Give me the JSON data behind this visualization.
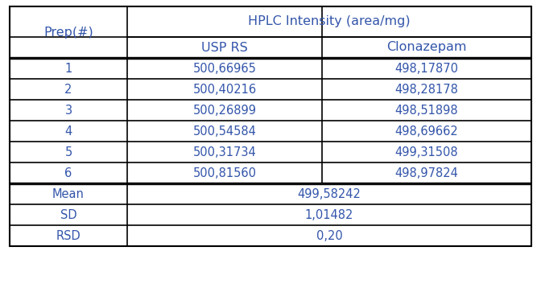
{
  "title": "HPLC Intensity (area/mg)",
  "col1_header": "Prep(#)",
  "col2_header": "USP RS",
  "col3_header": "Clonazepam",
  "prep_labels": [
    "1",
    "2",
    "3",
    "4",
    "5",
    "6"
  ],
  "usp_rs_values": [
    "500,66965",
    "500,40216",
    "500,26899",
    "500,54584",
    "500,31734",
    "500,81560"
  ],
  "clonazepam_values": [
    "498,17870",
    "498,28178",
    "498,51898",
    "498,69662",
    "499,31508",
    "498,97824"
  ],
  "mean_label": "Mean",
  "mean_value": "499,58242",
  "sd_label": "SD",
  "sd_value": "1,01482",
  "rsd_label": "RSD",
  "rsd_value": "0,20",
  "text_color": "#3355aa",
  "border_color": "#000000",
  "bg_color": "#ffffff",
  "font_size": 10.5,
  "header_font_size": 11.5
}
